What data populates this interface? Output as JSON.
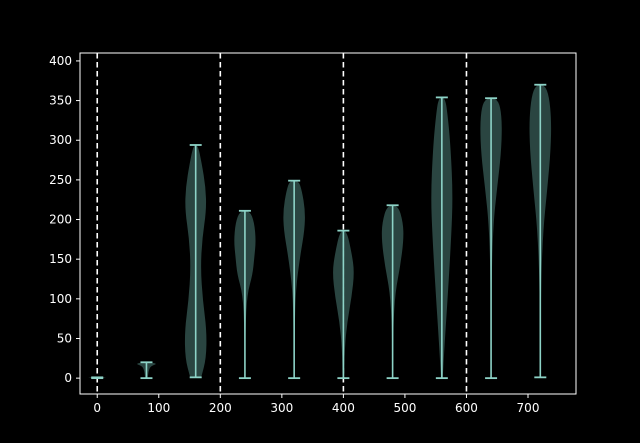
{
  "chart_data": {
    "type": "violin",
    "title": "",
    "xlabel": "",
    "ylabel": "",
    "xlim": [
      -28,
      778
    ],
    "ylim": [
      -20,
      410
    ],
    "xticks": [
      0,
      100,
      200,
      300,
      400,
      500,
      600,
      700
    ],
    "yticks": [
      0,
      50,
      100,
      150,
      200,
      250,
      300,
      350,
      400
    ],
    "grid": false,
    "legend": "none",
    "style": {
      "background": "#000000",
      "axes_color": "#ffffff",
      "violin_fill": "#2f4c48",
      "violin_line": "#8dd3c7",
      "vline_color": "#ffffff"
    },
    "vertical_dashed_lines_x": [
      0,
      200,
      400,
      600
    ],
    "violins": [
      {
        "x": 0,
        "min": 0,
        "max": 1,
        "profile": [
          [
            0,
            0.2
          ],
          [
            0.5,
            1
          ],
          [
            1,
            0.2
          ]
        ]
      },
      {
        "x": 80,
        "min": 0,
        "max": 20,
        "profile": [
          [
            0,
            0.12
          ],
          [
            0.4,
            0.18
          ],
          [
            0.75,
            0.35
          ],
          [
            0.9,
            1
          ],
          [
            1,
            0.4
          ]
        ]
      },
      {
        "x": 160,
        "min": 1,
        "max": 294,
        "profile": [
          [
            0,
            0.5
          ],
          [
            0.08,
            0.95
          ],
          [
            0.2,
            1
          ],
          [
            0.33,
            0.65
          ],
          [
            0.47,
            0.45
          ],
          [
            0.6,
            0.6
          ],
          [
            0.72,
            0.97
          ],
          [
            0.82,
            0.9
          ],
          [
            0.92,
            0.55
          ],
          [
            1,
            0.2
          ]
        ]
      },
      {
        "x": 240,
        "min": 0,
        "max": 211,
        "profile": [
          [
            0,
            0.02
          ],
          [
            0.3,
            0.05
          ],
          [
            0.5,
            0.2
          ],
          [
            0.62,
            0.7
          ],
          [
            0.72,
            0.85
          ],
          [
            0.82,
            1
          ],
          [
            0.93,
            0.85
          ],
          [
            1,
            0.45
          ]
        ]
      },
      {
        "x": 320,
        "min": 0,
        "max": 249,
        "profile": [
          [
            0,
            0.02
          ],
          [
            0.25,
            0.05
          ],
          [
            0.45,
            0.15
          ],
          [
            0.62,
            0.55
          ],
          [
            0.75,
            0.95
          ],
          [
            0.85,
            1
          ],
          [
            0.95,
            0.7
          ],
          [
            1,
            0.4
          ]
        ]
      },
      {
        "x": 400,
        "min": 0,
        "max": 186,
        "profile": [
          [
            0,
            0.08
          ],
          [
            0.2,
            0.12
          ],
          [
            0.38,
            0.35
          ],
          [
            0.55,
            0.75
          ],
          [
            0.72,
            1
          ],
          [
            0.85,
            0.75
          ],
          [
            1,
            0.3
          ]
        ]
      },
      {
        "x": 480,
        "min": 0,
        "max": 218,
        "profile": [
          [
            0,
            0.03
          ],
          [
            0.3,
            0.06
          ],
          [
            0.5,
            0.25
          ],
          [
            0.65,
            0.7
          ],
          [
            0.8,
            1
          ],
          [
            0.9,
            0.95
          ],
          [
            1,
            0.5
          ]
        ]
      },
      {
        "x": 560,
        "min": 0,
        "max": 354,
        "profile": [
          [
            0,
            0.08
          ],
          [
            0.12,
            0.25
          ],
          [
            0.3,
            0.55
          ],
          [
            0.5,
            0.85
          ],
          [
            0.65,
            1
          ],
          [
            0.82,
            0.8
          ],
          [
            0.93,
            0.55
          ],
          [
            1,
            0.3
          ]
        ]
      },
      {
        "x": 640,
        "min": 0,
        "max": 353,
        "profile": [
          [
            0,
            0.02
          ],
          [
            0.35,
            0.04
          ],
          [
            0.55,
            0.2
          ],
          [
            0.68,
            0.55
          ],
          [
            0.8,
            0.9
          ],
          [
            0.9,
            1
          ],
          [
            0.97,
            0.85
          ],
          [
            1,
            0.45
          ]
        ]
      },
      {
        "x": 720,
        "min": 1,
        "max": 370,
        "profile": [
          [
            0,
            0.03
          ],
          [
            0.3,
            0.05
          ],
          [
            0.5,
            0.25
          ],
          [
            0.65,
            0.65
          ],
          [
            0.78,
            0.95
          ],
          [
            0.88,
            1
          ],
          [
            0.96,
            0.8
          ],
          [
            1,
            0.4
          ]
        ]
      }
    ]
  }
}
